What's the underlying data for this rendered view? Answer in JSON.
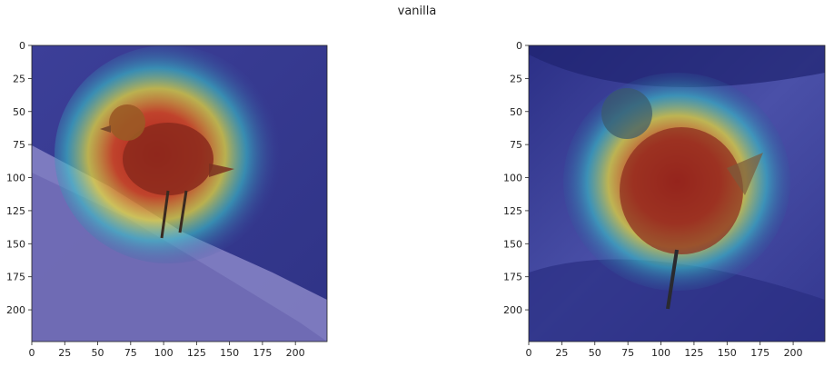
{
  "figure": {
    "suptitle": "vanilla",
    "panels": [
      {
        "name": "panel-left",
        "image_description": "bird on a branch with saliency heatmap",
        "xticks": [
          "0",
          "25",
          "50",
          "75",
          "100",
          "125",
          "150",
          "175",
          "200"
        ],
        "yticks": [
          "0",
          "25",
          "50",
          "75",
          "100",
          "125",
          "150",
          "175",
          "200"
        ],
        "xlim": [
          0,
          224
        ],
        "ylim": [
          224,
          0
        ]
      },
      {
        "name": "panel-right",
        "image_description": "bird close-up with saliency heatmap",
        "xticks": [
          "0",
          "25",
          "50",
          "75",
          "100",
          "125",
          "150",
          "175",
          "200"
        ],
        "yticks": [
          "0",
          "25",
          "50",
          "75",
          "100",
          "125",
          "150",
          "175",
          "200"
        ],
        "xlim": [
          0,
          224
        ],
        "ylim": [
          224,
          0
        ]
      }
    ],
    "colors": {
      "background_blue": "#3b3f99",
      "heat_red": "#c0191a",
      "heat_yellow": "#e8e23a",
      "heat_cyan": "#39c3c8",
      "bird_brown": "#7a4a2a",
      "branch": "#8a86c8"
    }
  }
}
